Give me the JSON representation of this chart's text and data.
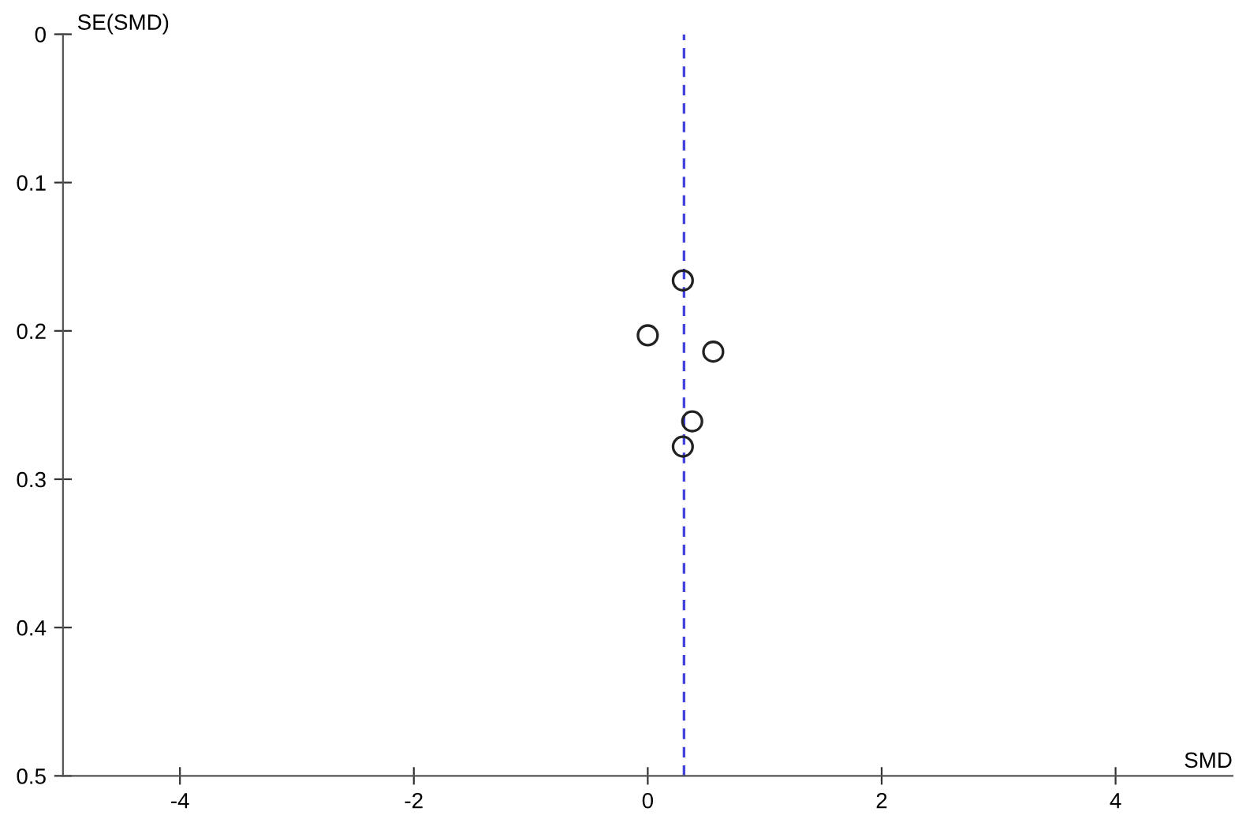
{
  "chart_data": {
    "type": "scatter",
    "xlabel": "SMD",
    "ylabel": "SE(SMD)",
    "x": [
      0.3,
      0.0,
      0.56,
      0.38,
      0.3
    ],
    "values": [
      0.166,
      0.203,
      0.214,
      0.261,
      0.278
    ],
    "color": "#222222",
    "marker": "circle",
    "xlim": [
      -5,
      5
    ],
    "xticks": [
      -4,
      -2,
      0,
      2,
      4
    ],
    "ylim": [
      0.5,
      0
    ],
    "yticks": [
      0,
      0.1,
      0.2,
      0.3,
      0.4,
      0.5
    ],
    "ref_lines": [
      {
        "axis": "x",
        "value": 0.31,
        "color": "#4444dd",
        "line_style": "dashed"
      }
    ],
    "grid": false,
    "legend": false
  }
}
